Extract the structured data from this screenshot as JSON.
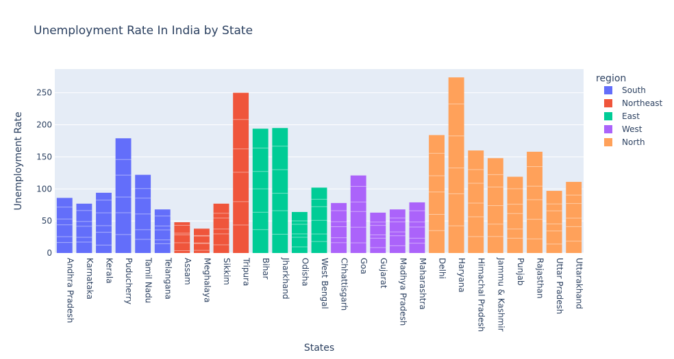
{
  "chart_data": {
    "type": "bar",
    "title": "Unemployment Rate In India by State",
    "xlabel": "States",
    "ylabel": "Unemployment Rate",
    "ylim": [
      0,
      287
    ],
    "yticks": [
      0,
      50,
      100,
      150,
      200,
      250
    ],
    "grid": true,
    "legend": {
      "title": "region",
      "placement": "right"
    },
    "colors": {
      "South": "#636efa",
      "Northeast": "#ef553b",
      "East": "#00cc96",
      "West": "#ab63fa",
      "North": "#ffa15a",
      "plot_bg": "#e5ecf6",
      "text": "#2a3f5f"
    },
    "series": [
      {
        "name": "South",
        "categories": [
          "Andhra Pradesh",
          "Karnataka",
          "Kerala",
          "Puducherry",
          "Tamil Nadu",
          "Telangana"
        ],
        "values": [
          86,
          77,
          94,
          179,
          122,
          68
        ]
      },
      {
        "name": "Northeast",
        "categories": [
          "Assam",
          "Meghalaya",
          "Sikkim",
          "Tripura"
        ],
        "values": [
          48,
          38,
          77,
          250
        ]
      },
      {
        "name": "East",
        "categories": [
          "Bihar",
          "Jharkhand",
          "Odisha",
          "West Bengal"
        ],
        "values": [
          194,
          195,
          64,
          102
        ]
      },
      {
        "name": "West",
        "categories": [
          "Chhattisgarh",
          "Goa",
          "Gujarat",
          "Madhya Pradesh",
          "Maharashtra"
        ],
        "values": [
          78,
          121,
          63,
          68,
          79
        ]
      },
      {
        "name": "North",
        "categories": [
          "Delhi",
          "Haryana",
          "Himachal Pradesh",
          "Jammu & Kashmir",
          "Punjab",
          "Rajasthan",
          "Uttar Pradesh",
          "Uttarakhand"
        ],
        "values": [
          184,
          274,
          160,
          148,
          119,
          158,
          97,
          111
        ]
      }
    ]
  }
}
